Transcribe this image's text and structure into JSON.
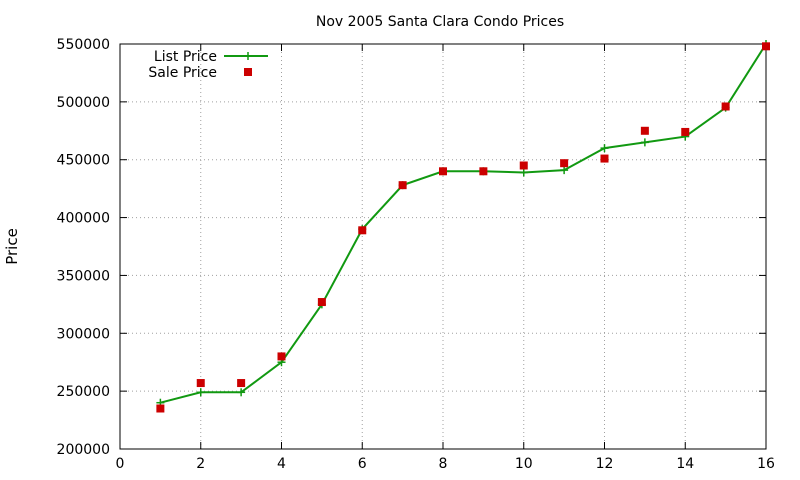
{
  "chart_data": {
    "type": "line",
    "title": "Nov 2005 Santa Clara Condo Prices",
    "xlabel": "",
    "ylabel": "Price",
    "xlim": [
      0,
      16
    ],
    "ylim": [
      200000,
      550000
    ],
    "x_ticks": [
      "0",
      "2",
      "4",
      "6",
      "8",
      "10",
      "12",
      "14",
      "16"
    ],
    "y_ticks": [
      "200000",
      "250000",
      "300000",
      "350000",
      "400000",
      "450000",
      "500000",
      "550000"
    ],
    "grid": true,
    "legend_position": "top-left",
    "series": [
      {
        "name": "List Price",
        "kind": "line-with-plus-markers",
        "color": "#119911",
        "x": [
          1,
          2,
          3,
          4,
          5,
          6,
          7,
          8,
          9,
          10,
          11,
          12,
          13,
          14,
          15,
          16
        ],
        "y": [
          240000,
          249000,
          249000,
          275000,
          325000,
          390000,
          428000,
          440000,
          440000,
          439000,
          441000,
          460000,
          465000,
          470000,
          495000,
          550000
        ]
      },
      {
        "name": "Sale Price",
        "kind": "square-markers",
        "color": "#cc0000",
        "x": [
          1,
          2,
          3,
          4,
          5,
          6,
          7,
          8,
          9,
          10,
          11,
          12,
          13,
          14,
          15,
          16
        ],
        "y": [
          235000,
          257000,
          257000,
          280000,
          327000,
          389000,
          428000,
          440000,
          440000,
          445000,
          447000,
          451000,
          475000,
          474000,
          496000,
          548000
        ]
      }
    ]
  }
}
